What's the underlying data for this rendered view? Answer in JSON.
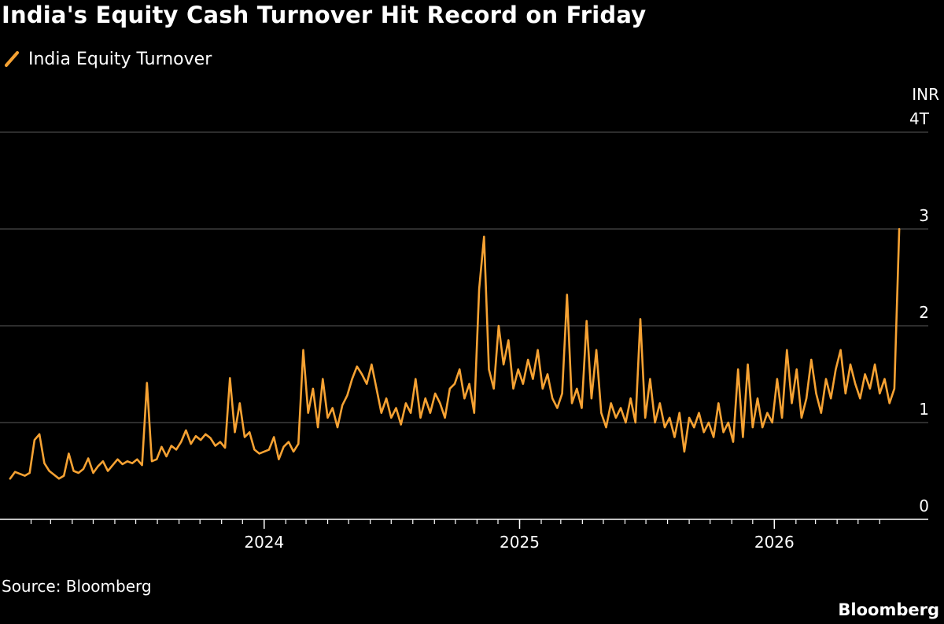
{
  "colors": {
    "series": "#f6a233",
    "grid": "#5a5a5a",
    "axis": "#ffffff",
    "text": "#ffffff",
    "background": "#000000"
  },
  "chart_data": {
    "type": "line",
    "title": "India's Equity Cash Turnover Hit Record on Friday",
    "unit_label": "INR",
    "yticks": [
      {
        "value": 0,
        "label": "0"
      },
      {
        "value": 1,
        "label": "1"
      },
      {
        "value": 2,
        "label": "2"
      },
      {
        "value": 3,
        "label": "3"
      },
      {
        "value": 4,
        "label": "4T"
      }
    ],
    "ylim": [
      0,
      4
    ],
    "xlim": [
      "2023-01-01",
      "2026-06-30"
    ],
    "xticks": [
      {
        "value": "2024-01-01",
        "label": "2024"
      },
      {
        "value": "2025-01-01",
        "label": "2025"
      },
      {
        "value": "2026-01-01",
        "label": "2026"
      }
    ],
    "grid": true,
    "legend_position": "top-left",
    "series": [
      {
        "name": "India Equity Turnover",
        "points": [
          [
            "2023-01-02",
            0.42
          ],
          [
            "2023-01-09",
            0.49
          ],
          [
            "2023-01-16",
            0.47
          ],
          [
            "2023-01-23",
            0.45
          ],
          [
            "2023-01-30",
            0.48
          ],
          [
            "2023-02-06",
            0.82
          ],
          [
            "2023-02-13",
            0.88
          ],
          [
            "2023-02-20",
            0.58
          ],
          [
            "2023-02-27",
            0.5
          ],
          [
            "2023-03-06",
            0.46
          ],
          [
            "2023-03-13",
            0.42
          ],
          [
            "2023-03-20",
            0.45
          ],
          [
            "2023-03-27",
            0.68
          ],
          [
            "2023-04-03",
            0.5
          ],
          [
            "2023-04-10",
            0.48
          ],
          [
            "2023-04-17",
            0.52
          ],
          [
            "2023-04-24",
            0.63
          ],
          [
            "2023-05-01",
            0.48
          ],
          [
            "2023-05-08",
            0.55
          ],
          [
            "2023-05-15",
            0.6
          ],
          [
            "2023-05-22",
            0.5
          ],
          [
            "2023-05-29",
            0.56
          ],
          [
            "2023-06-05",
            0.62
          ],
          [
            "2023-06-12",
            0.57
          ],
          [
            "2023-06-19",
            0.6
          ],
          [
            "2023-06-26",
            0.58
          ],
          [
            "2023-07-03",
            0.62
          ],
          [
            "2023-07-10",
            0.56
          ],
          [
            "2023-07-17",
            1.41
          ],
          [
            "2023-07-24",
            0.6
          ],
          [
            "2023-07-31",
            0.62
          ],
          [
            "2023-08-07",
            0.75
          ],
          [
            "2023-08-14",
            0.65
          ],
          [
            "2023-08-21",
            0.76
          ],
          [
            "2023-08-28",
            0.72
          ],
          [
            "2023-09-04",
            0.8
          ],
          [
            "2023-09-11",
            0.92
          ],
          [
            "2023-09-18",
            0.78
          ],
          [
            "2023-09-25",
            0.86
          ],
          [
            "2023-10-02",
            0.82
          ],
          [
            "2023-10-09",
            0.88
          ],
          [
            "2023-10-16",
            0.84
          ],
          [
            "2023-10-23",
            0.76
          ],
          [
            "2023-10-30",
            0.8
          ],
          [
            "2023-11-06",
            0.74
          ],
          [
            "2023-11-13",
            1.46
          ],
          [
            "2023-11-20",
            0.9
          ],
          [
            "2023-11-27",
            1.2
          ],
          [
            "2023-12-04",
            0.85
          ],
          [
            "2023-12-11",
            0.9
          ],
          [
            "2023-12-18",
            0.72
          ],
          [
            "2023-12-25",
            0.68
          ],
          [
            "2024-01-01",
            0.7
          ],
          [
            "2024-01-08",
            0.72
          ],
          [
            "2024-01-15",
            0.85
          ],
          [
            "2024-01-22",
            0.62
          ],
          [
            "2024-01-29",
            0.75
          ],
          [
            "2024-02-05",
            0.8
          ],
          [
            "2024-02-12",
            0.7
          ],
          [
            "2024-02-19",
            0.78
          ],
          [
            "2024-02-26",
            1.75
          ],
          [
            "2024-03-04",
            1.1
          ],
          [
            "2024-03-11",
            1.35
          ],
          [
            "2024-03-18",
            0.95
          ],
          [
            "2024-03-25",
            1.45
          ],
          [
            "2024-04-01",
            1.05
          ],
          [
            "2024-04-08",
            1.15
          ],
          [
            "2024-04-15",
            0.95
          ],
          [
            "2024-04-22",
            1.18
          ],
          [
            "2024-04-29",
            1.28
          ],
          [
            "2024-05-06",
            1.45
          ],
          [
            "2024-05-13",
            1.58
          ],
          [
            "2024-05-20",
            1.5
          ],
          [
            "2024-05-27",
            1.4
          ],
          [
            "2024-06-03",
            1.6
          ],
          [
            "2024-06-10",
            1.35
          ],
          [
            "2024-06-17",
            1.1
          ],
          [
            "2024-06-24",
            1.25
          ],
          [
            "2024-07-01",
            1.05
          ],
          [
            "2024-07-08",
            1.15
          ],
          [
            "2024-07-15",
            0.98
          ],
          [
            "2024-07-22",
            1.2
          ],
          [
            "2024-07-29",
            1.1
          ],
          [
            "2024-08-05",
            1.45
          ],
          [
            "2024-08-12",
            1.05
          ],
          [
            "2024-08-19",
            1.25
          ],
          [
            "2024-08-26",
            1.1
          ],
          [
            "2024-09-02",
            1.3
          ],
          [
            "2024-09-09",
            1.2
          ],
          [
            "2024-09-16",
            1.05
          ],
          [
            "2024-09-23",
            1.35
          ],
          [
            "2024-09-30",
            1.4
          ],
          [
            "2024-10-07",
            1.55
          ],
          [
            "2024-10-14",
            1.25
          ],
          [
            "2024-10-21",
            1.4
          ],
          [
            "2024-10-28",
            1.1
          ],
          [
            "2024-11-04",
            2.38
          ],
          [
            "2024-11-11",
            2.92
          ],
          [
            "2024-11-18",
            1.55
          ],
          [
            "2024-11-25",
            1.35
          ],
          [
            "2024-12-02",
            2.0
          ],
          [
            "2024-12-09",
            1.6
          ],
          [
            "2024-12-16",
            1.85
          ],
          [
            "2024-12-23",
            1.35
          ],
          [
            "2024-12-30",
            1.55
          ],
          [
            "2025-01-06",
            1.4
          ],
          [
            "2025-01-13",
            1.65
          ],
          [
            "2025-01-20",
            1.45
          ],
          [
            "2025-01-27",
            1.75
          ],
          [
            "2025-02-03",
            1.35
          ],
          [
            "2025-02-10",
            1.5
          ],
          [
            "2025-02-17",
            1.25
          ],
          [
            "2025-02-24",
            1.15
          ],
          [
            "2025-03-03",
            1.3
          ],
          [
            "2025-03-10",
            2.32
          ],
          [
            "2025-03-17",
            1.2
          ],
          [
            "2025-03-24",
            1.35
          ],
          [
            "2025-03-31",
            1.15
          ],
          [
            "2025-04-07",
            2.05
          ],
          [
            "2025-04-14",
            1.25
          ],
          [
            "2025-04-21",
            1.75
          ],
          [
            "2025-04-28",
            1.1
          ],
          [
            "2025-05-05",
            0.95
          ],
          [
            "2025-05-12",
            1.2
          ],
          [
            "2025-05-19",
            1.05
          ],
          [
            "2025-05-26",
            1.15
          ],
          [
            "2025-06-02",
            1.0
          ],
          [
            "2025-06-09",
            1.25
          ],
          [
            "2025-06-16",
            1.0
          ],
          [
            "2025-06-23",
            2.07
          ],
          [
            "2025-06-30",
            1.05
          ],
          [
            "2025-07-07",
            1.45
          ],
          [
            "2025-07-14",
            1.0
          ],
          [
            "2025-07-21",
            1.2
          ],
          [
            "2025-07-28",
            0.95
          ],
          [
            "2025-08-04",
            1.05
          ],
          [
            "2025-08-11",
            0.85
          ],
          [
            "2025-08-18",
            1.1
          ],
          [
            "2025-08-25",
            0.7
          ],
          [
            "2025-09-01",
            1.05
          ],
          [
            "2025-09-08",
            0.95
          ],
          [
            "2025-09-15",
            1.1
          ],
          [
            "2025-09-22",
            0.9
          ],
          [
            "2025-09-29",
            1.0
          ],
          [
            "2025-10-06",
            0.85
          ],
          [
            "2025-10-13",
            1.2
          ],
          [
            "2025-10-20",
            0.9
          ],
          [
            "2025-10-27",
            1.0
          ],
          [
            "2025-11-03",
            0.8
          ],
          [
            "2025-11-10",
            1.55
          ],
          [
            "2025-11-17",
            0.85
          ],
          [
            "2025-11-24",
            1.6
          ],
          [
            "2025-12-01",
            0.95
          ],
          [
            "2025-12-08",
            1.25
          ],
          [
            "2025-12-15",
            0.95
          ],
          [
            "2025-12-22",
            1.1
          ],
          [
            "2025-12-29",
            1.0
          ],
          [
            "2026-01-05",
            1.45
          ],
          [
            "2026-01-12",
            1.05
          ],
          [
            "2026-01-19",
            1.75
          ],
          [
            "2026-01-26",
            1.2
          ],
          [
            "2026-02-02",
            1.55
          ],
          [
            "2026-02-09",
            1.05
          ],
          [
            "2026-02-16",
            1.25
          ],
          [
            "2026-02-23",
            1.65
          ],
          [
            "2026-03-02",
            1.3
          ],
          [
            "2026-03-09",
            1.1
          ],
          [
            "2026-03-16",
            1.45
          ],
          [
            "2026-03-23",
            1.25
          ],
          [
            "2026-03-30",
            1.55
          ],
          [
            "2026-04-06",
            1.75
          ],
          [
            "2026-04-13",
            1.3
          ],
          [
            "2026-04-20",
            1.6
          ],
          [
            "2026-04-27",
            1.4
          ],
          [
            "2026-05-04",
            1.25
          ],
          [
            "2026-05-11",
            1.5
          ],
          [
            "2026-05-18",
            1.35
          ],
          [
            "2026-05-25",
            1.6
          ],
          [
            "2026-06-01",
            1.3
          ],
          [
            "2026-06-08",
            1.45
          ],
          [
            "2026-06-15",
            1.2
          ],
          [
            "2026-06-22",
            1.35
          ],
          [
            "2026-06-29",
            3.0
          ]
        ]
      }
    ],
    "source": "Source: Bloomberg",
    "brand": "Bloomberg"
  }
}
